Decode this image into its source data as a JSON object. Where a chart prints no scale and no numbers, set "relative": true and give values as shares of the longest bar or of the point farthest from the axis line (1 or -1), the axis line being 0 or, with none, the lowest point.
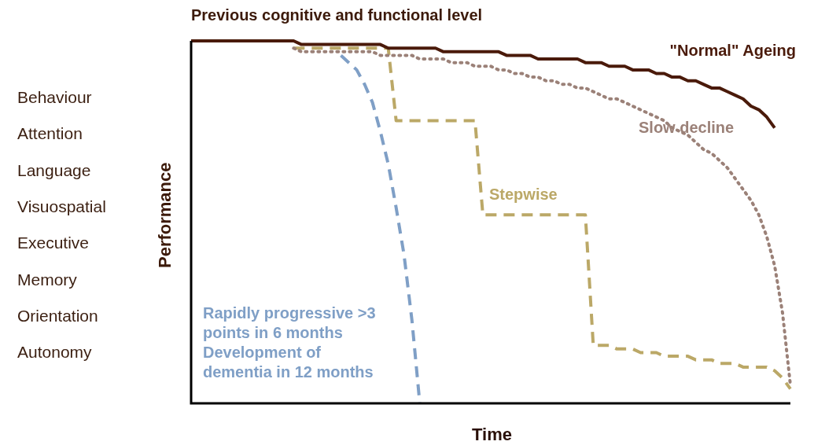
{
  "chart_data": {
    "type": "line",
    "title": "Previous cognitive and functional level",
    "xlabel": "Time",
    "ylabel": "Performance",
    "relative": true,
    "legend": false,
    "marker": "none",
    "annotations": [
      "Behaviour",
      "Attention",
      "Language",
      "Visuospatial",
      "Executive",
      "Memory",
      "Orientation",
      "Autonomy"
    ],
    "categories": [
      null,
      null,
      null,
      null,
      null,
      null,
      null,
      null,
      null,
      null,
      null,
      null,
      null,
      null,
      null,
      null,
      null,
      null,
      null,
      null,
      null,
      null,
      null,
      null,
      null,
      null,
      null,
      null,
      null,
      null,
      null,
      null,
      null,
      null,
      null,
      null,
      null,
      null,
      null,
      null,
      null,
      null,
      null,
      null,
      null,
      null,
      null,
      null,
      null,
      null,
      null,
      null,
      null,
      null,
      null,
      null,
      null,
      null,
      null,
      null,
      null,
      null,
      null,
      null,
      null,
      null,
      null,
      null,
      null,
      null,
      null,
      null,
      null,
      null,
      null,
      null,
      null
    ],
    "series": [
      {
        "name": "\"Normal\" Ageing",
        "color": "#4a1a0a",
        "line_style": "solid",
        "values": [
          1,
          1,
          1,
          1,
          1,
          1,
          1,
          1,
          1,
          1,
          1,
          1,
          1,
          1,
          0.99,
          0.99,
          0.99,
          0.99,
          0.99,
          0.99,
          0.99,
          0.99,
          0.99,
          0.99,
          0.99,
          0.98,
          0.98,
          0.98,
          0.98,
          0.98,
          0.98,
          0.98,
          0.97,
          0.97,
          0.97,
          0.97,
          0.97,
          0.97,
          0.97,
          0.97,
          0.96,
          0.96,
          0.96,
          0.96,
          0.95,
          0.95,
          0.95,
          0.95,
          0.95,
          0.95,
          0.94,
          0.94,
          0.94,
          0.93,
          0.93,
          0.93,
          0.92,
          0.92,
          0.92,
          0.91,
          0.91,
          0.9,
          0.9,
          0.89,
          0.89,
          0.88,
          0.87,
          0.87,
          0.86,
          0.85,
          0.84,
          0.82,
          0.81,
          0.79,
          0.76,
          null,
          null
        ]
      },
      {
        "name": "Slow decline",
        "color": "#9b8178",
        "line_style": "dotted",
        "values": [
          null,
          null,
          null,
          null,
          null,
          null,
          null,
          null,
          null,
          null,
          null,
          null,
          null,
          0.98,
          0.97,
          0.97,
          0.97,
          0.97,
          0.97,
          0.97,
          0.97,
          0.97,
          0.97,
          0.97,
          0.96,
          0.96,
          0.96,
          0.96,
          0.96,
          0.95,
          0.95,
          0.95,
          0.95,
          0.94,
          0.94,
          0.94,
          0.93,
          0.93,
          0.93,
          0.92,
          0.92,
          0.91,
          0.91,
          0.9,
          0.9,
          0.89,
          0.89,
          0.88,
          0.88,
          0.87,
          0.87,
          0.86,
          0.85,
          0.84,
          0.84,
          0.83,
          0.82,
          0.81,
          0.8,
          0.79,
          0.78,
          0.76,
          0.75,
          0.74,
          0.72,
          0.7,
          0.69,
          0.67,
          0.65,
          0.62,
          0.59,
          0.56,
          0.52,
          0.46,
          0.38,
          0.25,
          0.05
        ]
      },
      {
        "name": "Stepwise",
        "color": "#bba867",
        "line_style": "dashed",
        "values": [
          null,
          null,
          null,
          null,
          null,
          null,
          null,
          null,
          null,
          null,
          null,
          null,
          null,
          0.98,
          0.98,
          0.98,
          0.98,
          0.98,
          0.98,
          0.98,
          0.98,
          0.98,
          0.98,
          0.98,
          0.98,
          0.98,
          0.78,
          0.78,
          0.78,
          0.78,
          0.78,
          0.78,
          0.78,
          0.78,
          0.78,
          0.78,
          0.78,
          0.52,
          0.52,
          0.52,
          0.52,
          0.52,
          0.52,
          0.52,
          0.52,
          0.52,
          0.52,
          0.52,
          0.52,
          0.52,
          0.52,
          0.16,
          0.16,
          0.16,
          0.15,
          0.15,
          0.15,
          0.14,
          0.14,
          0.14,
          0.13,
          0.13,
          0.13,
          0.13,
          0.12,
          0.12,
          0.12,
          0.11,
          0.11,
          0.11,
          0.1,
          0.1,
          0.1,
          0.1,
          0.09,
          0.07,
          0.04
        ]
      },
      {
        "name": "Rapidly progressive >3 points in 6 months Development of dementia in 12 months",
        "color": "#7f9fc6",
        "line_style": "dashed",
        "values": [
          null,
          null,
          null,
          null,
          null,
          null,
          null,
          null,
          null,
          null,
          null,
          null,
          null,
          null,
          null,
          null,
          null,
          null,
          null,
          0.96,
          0.94,
          0.92,
          0.88,
          0.83,
          0.75,
          0.66,
          0.54,
          0.41,
          0.23,
          0,
          null,
          null,
          null,
          null,
          null,
          null,
          null,
          null,
          null,
          null,
          null,
          null,
          null,
          null,
          null,
          null,
          null,
          null,
          null,
          null,
          null,
          null,
          null,
          null,
          null,
          null,
          null,
          null,
          null,
          null,
          null,
          null,
          null,
          null,
          null,
          null,
          null,
          null,
          null,
          null,
          null,
          null,
          null,
          null,
          null,
          null,
          null
        ]
      }
    ]
  }
}
